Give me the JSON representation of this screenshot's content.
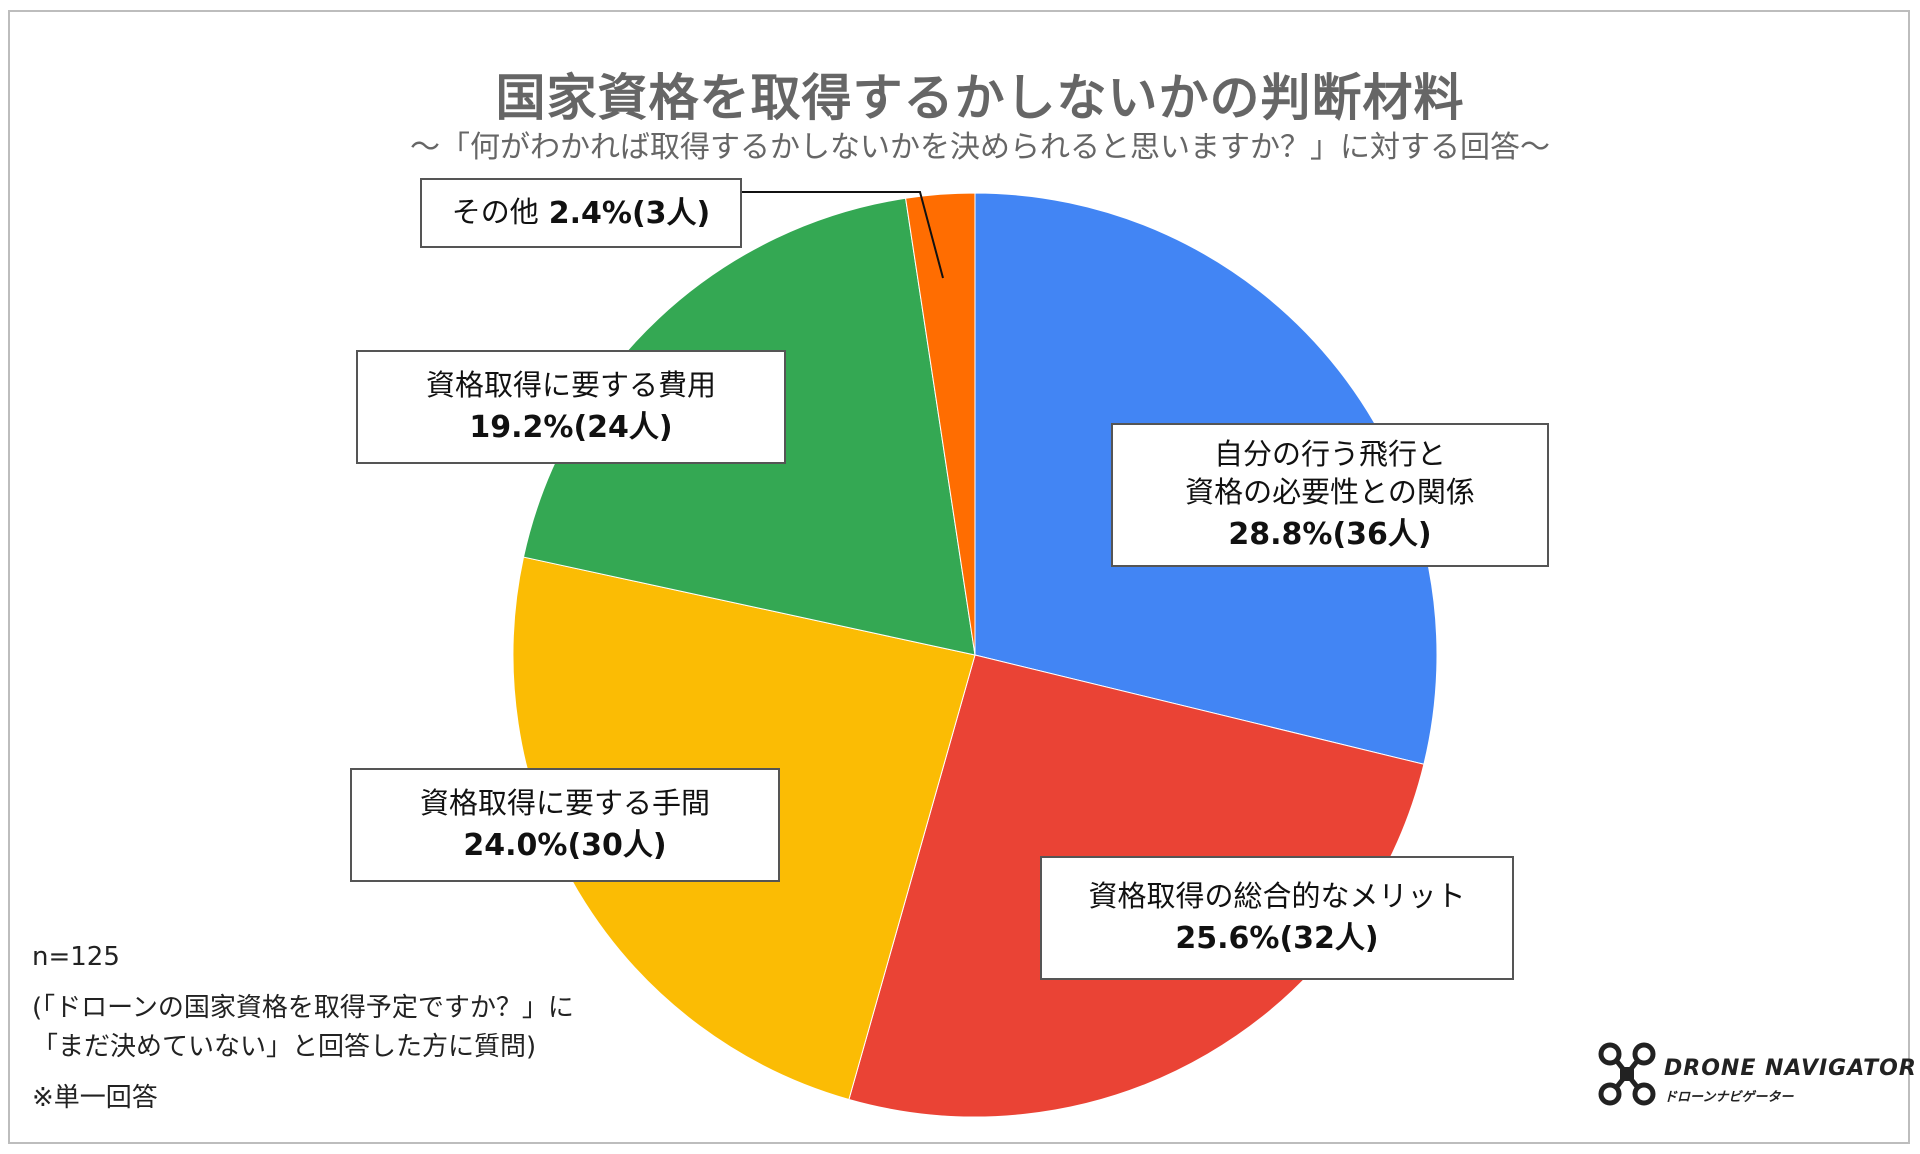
{
  "title": "国家資格を取得するかしないかの判断材料",
  "subtitle": "〜「何がわかれば取得するかしないかを決められると思いますか？」に対する回答〜",
  "chart_data": {
    "type": "pie",
    "title": "国家資格を取得するかしないかの判断材料",
    "slices": [
      {
        "label_lines": [
          "自分の行う飛行と",
          "資格の必要性との関係"
        ],
        "value": 28.8,
        "count_text": "28.8%(36人)",
        "color": "#4285F4"
      },
      {
        "label_lines": [
          "資格取得の総合的なメリット"
        ],
        "value": 25.6,
        "count_text": "25.6%(32人)",
        "color": "#EA4335"
      },
      {
        "label_lines": [
          "資格取得に要する手間"
        ],
        "value": 24.0,
        "count_text": "24.0%(30人)",
        "color": "#FBBC04"
      },
      {
        "label_lines": [
          "資格取得に要する費用"
        ],
        "value": 19.2,
        "count_text": "19.2%(24人)",
        "color": "#34A853"
      },
      {
        "label_lines": [
          "その他"
        ],
        "value": 2.4,
        "count_text": "2.4%(3人)",
        "color": "#FF6D01"
      }
    ]
  },
  "notes": {
    "n": "n=125",
    "condition_line1": "(「ドローンの国家資格を取得予定ですか？」に",
    "condition_line2": "「まだ決めていない」と回答した方に質問)",
    "single": "※単一回答"
  },
  "logo": {
    "name": "DRONE NAVIGATOR",
    "sub": "ドローンナビゲーター"
  }
}
